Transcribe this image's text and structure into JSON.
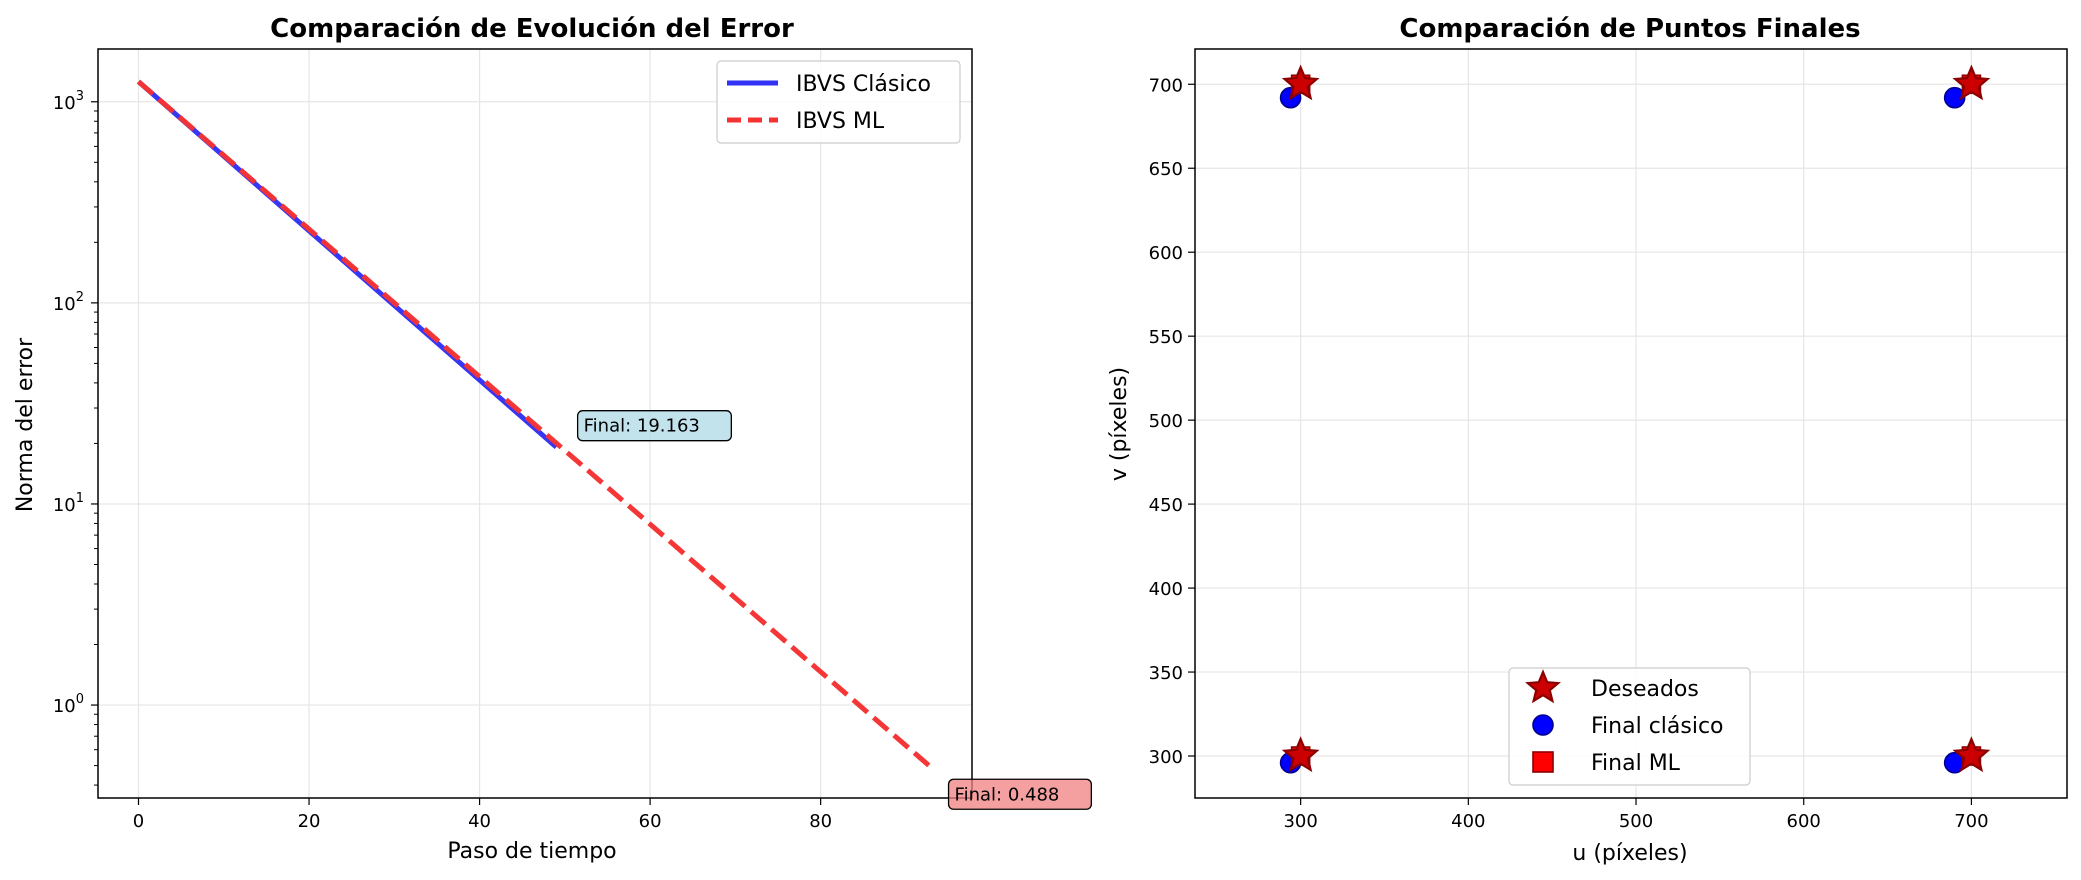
{
  "chart_data": [
    {
      "type": "line",
      "title": "Comparación de Evolución del Error",
      "xlabel": "Paso de tiempo",
      "ylabel": "Norma del error",
      "xlim": [
        -4.75,
        97.75
      ],
      "ylim": [
        0.345,
        1830
      ],
      "yscale": "log",
      "grid": true,
      "legend_position": "top-right",
      "xticks": [
        0,
        20,
        40,
        60,
        80
      ],
      "yticks": [
        {
          "value": 1,
          "base": "10",
          "exp": "0"
        },
        {
          "value": 10,
          "base": "10",
          "exp": "1"
        },
        {
          "value": 100,
          "base": "10",
          "exp": "2"
        },
        {
          "value": 1000,
          "base": "10",
          "exp": "3"
        }
      ],
      "series": [
        {
          "name": "IBVS Clásico",
          "color": "#3232f5",
          "style": "solid",
          "x_start": 0,
          "x_end": 49,
          "y_start": 1260,
          "y_end": 19.163
        },
        {
          "name": "IBVS ML",
          "color": "#f53232",
          "style": "dashed",
          "x_start": 0,
          "x_end": 93,
          "y_start": 1260,
          "y_end": 0.488
        }
      ],
      "annotations": [
        {
          "text": "Final: 19.163",
          "x": 51.5,
          "y": 24.5,
          "bg": "#add8e6"
        },
        {
          "text": "Final: 0.488",
          "x": 95,
          "y": 0.36,
          "bg": "#f08080"
        }
      ]
    },
    {
      "type": "scatter",
      "title": "Comparación de Puntos Finales",
      "xlabel": "u (píxeles)",
      "ylabel": "v (píxeles)",
      "xlim": [
        237,
        757
      ],
      "ylim": [
        275,
        721
      ],
      "grid": true,
      "legend_position": "lower-center",
      "xticks": [
        300,
        400,
        500,
        600,
        700
      ],
      "yticks": [
        300,
        350,
        400,
        450,
        500,
        550,
        600,
        650,
        700
      ],
      "series": [
        {
          "name": "Deseados",
          "marker": "star",
          "color": "#cc0000",
          "edge": "#8b0000",
          "points": [
            [
              300,
              300
            ],
            [
              700,
              300
            ],
            [
              300,
              700
            ],
            [
              700,
              700
            ]
          ]
        },
        {
          "name": "Final clásico",
          "marker": "circle",
          "color": "#0000ff",
          "edge": "#00008b",
          "points": [
            [
              294,
              296
            ],
            [
              690,
              296
            ],
            [
              294,
              692
            ],
            [
              690,
              692
            ]
          ]
        },
        {
          "name": "Final ML",
          "marker": "square",
          "color": "#ff0000",
          "edge": "#8b0000",
          "points": [
            [
              300,
              300
            ],
            [
              700,
              300
            ],
            [
              300,
              700
            ],
            [
              700,
              700
            ]
          ]
        }
      ]
    }
  ]
}
